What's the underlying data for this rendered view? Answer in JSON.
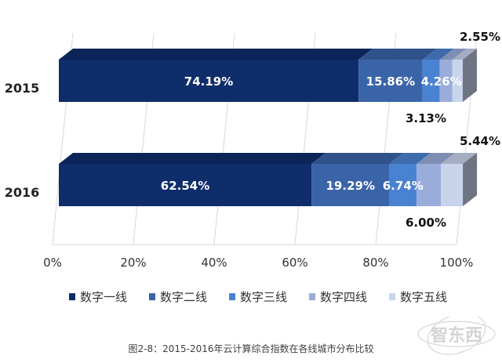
{
  "chart_data": {
    "type": "bar",
    "stacked": true,
    "orientation": "horizontal",
    "style": "3d",
    "categories": [
      "2015",
      "2016"
    ],
    "series": [
      {
        "name": "数字一线",
        "color": "#0f2d6b",
        "values": [
          74.19,
          62.54
        ],
        "labels": [
          "74.19%",
          "62.54%"
        ]
      },
      {
        "name": "数字二线",
        "color": "#3a64a8",
        "values": [
          15.86,
          19.29
        ],
        "labels": [
          "15.86%",
          "19.29%"
        ]
      },
      {
        "name": "数字三线",
        "color": "#4a82d2",
        "values": [
          4.26,
          6.74
        ],
        "labels": [
          "4.26%",
          "6.74%"
        ]
      },
      {
        "name": "数字四线",
        "color": "#9aadda",
        "values": [
          3.13,
          6.0
        ],
        "labels": [
          "3.13%",
          "6.00%"
        ]
      },
      {
        "name": "数字五线",
        "color": "#c9d3ec",
        "values": [
          2.55,
          5.44
        ],
        "labels": [
          "2.55%",
          "5.44%"
        ]
      }
    ],
    "xlim": [
      0,
      100
    ],
    "x_ticks": [
      "0%",
      "20%",
      "40%",
      "60%",
      "80%",
      "100%"
    ],
    "grid": true,
    "legend_position": "bottom"
  },
  "caption": "图2-8：2015-2016年云计算综合指数在各线城市分布比较",
  "watermark": "智东西"
}
